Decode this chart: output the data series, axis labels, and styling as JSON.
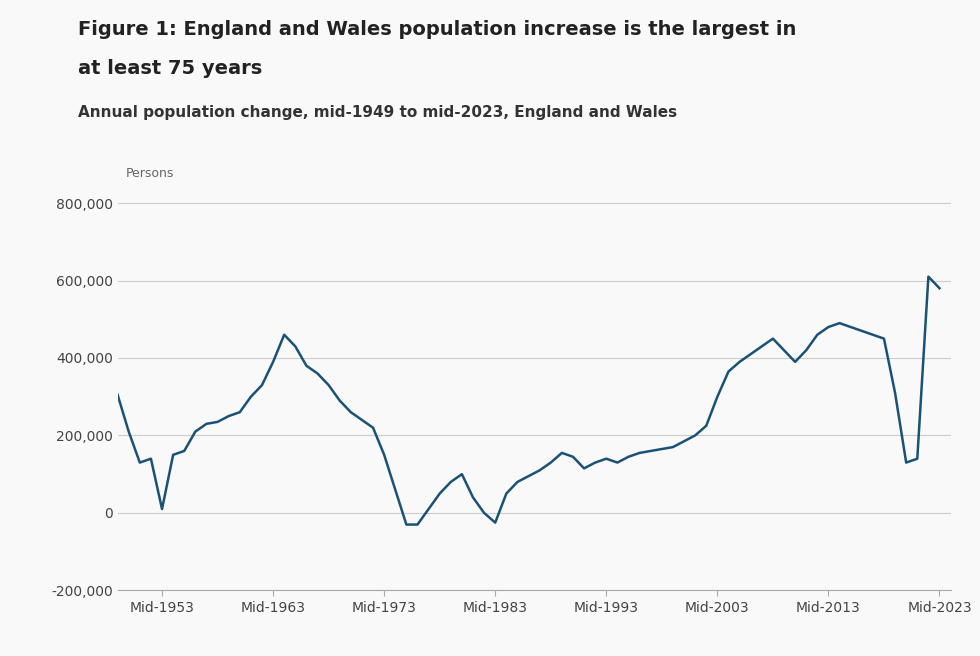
{
  "title_line1": "Figure 1: England and Wales population increase is the largest in",
  "title_line2": "at least 75 years",
  "subtitle": "Annual population change, mid-1949 to mid-2023, England and Wales",
  "ylabel_units": "Persons",
  "ylim": [
    -200000,
    850000
  ],
  "yticks": [
    -200000,
    0,
    200000,
    400000,
    600000,
    800000
  ],
  "xtick_labels": [
    "Mid-1953",
    "Mid-1963",
    "Mid-1973",
    "Mid-1983",
    "Mid-1993",
    "Mid-2003",
    "Mid-2013",
    "Mid-2023"
  ],
  "xtick_positions": [
    1953,
    1963,
    1973,
    1983,
    1993,
    2003,
    2013,
    2023
  ],
  "line_color": "#1a5276",
  "background_color": "#f9f9f9",
  "years": [
    1949,
    1950,
    1951,
    1952,
    1953,
    1954,
    1955,
    1956,
    1957,
    1958,
    1959,
    1960,
    1961,
    1962,
    1963,
    1964,
    1965,
    1966,
    1967,
    1968,
    1969,
    1970,
    1971,
    1972,
    1973,
    1974,
    1975,
    1976,
    1977,
    1978,
    1979,
    1980,
    1981,
    1982,
    1983,
    1984,
    1985,
    1986,
    1987,
    1988,
    1989,
    1990,
    1991,
    1992,
    1993,
    1994,
    1995,
    1996,
    1997,
    1998,
    1999,
    2000,
    2001,
    2002,
    2003,
    2004,
    2005,
    2006,
    2007,
    2008,
    2009,
    2010,
    2011,
    2012,
    2013,
    2014,
    2015,
    2016,
    2017,
    2018,
    2019,
    2020,
    2021,
    2022,
    2023
  ],
  "values": [
    305000,
    210000,
    130000,
    140000,
    10000,
    150000,
    160000,
    210000,
    230000,
    235000,
    250000,
    260000,
    300000,
    330000,
    390000,
    460000,
    430000,
    380000,
    360000,
    330000,
    290000,
    260000,
    240000,
    220000,
    150000,
    60000,
    -30000,
    -30000,
    10000,
    50000,
    80000,
    100000,
    40000,
    0,
    -25000,
    50000,
    80000,
    95000,
    110000,
    130000,
    155000,
    145000,
    115000,
    130000,
    140000,
    130000,
    145000,
    155000,
    160000,
    165000,
    170000,
    185000,
    200000,
    225000,
    300000,
    365000,
    390000,
    410000,
    430000,
    450000,
    420000,
    390000,
    420000,
    460000,
    480000,
    490000,
    480000,
    470000,
    460000,
    450000,
    310000,
    130000,
    140000,
    610000,
    580000
  ]
}
